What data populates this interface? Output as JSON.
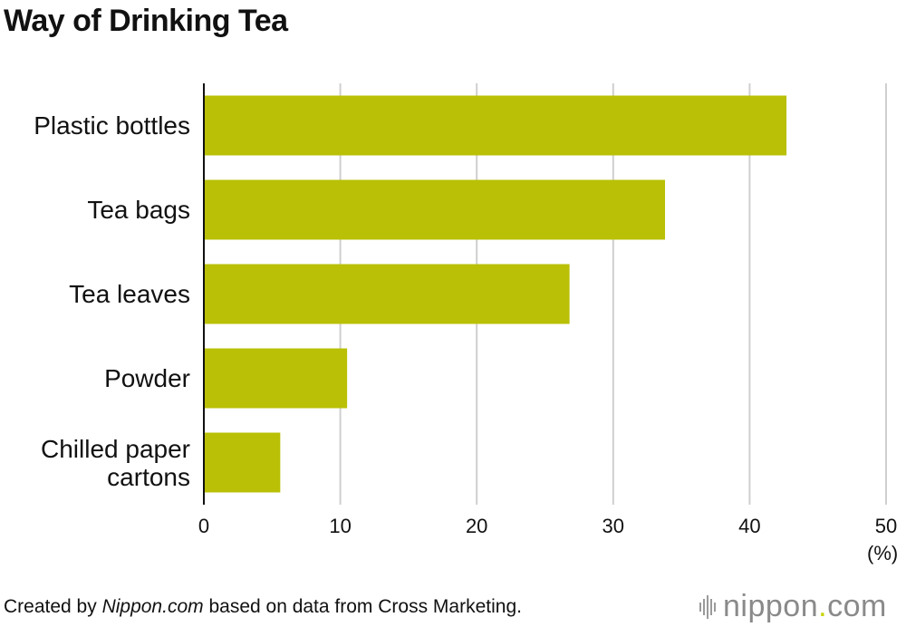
{
  "title": "Way of Drinking Tea",
  "chart_data": {
    "type": "bar",
    "orientation": "horizontal",
    "title": "Way of Drinking Tea",
    "categories": [
      "Plastic bottles",
      "Tea bags",
      "Tea leaves",
      "Powder",
      "Chilled paper cartons"
    ],
    "values": [
      42.7,
      33.8,
      26.8,
      10.5,
      5.6
    ],
    "xlim": [
      0,
      50
    ],
    "xticks": [
      0,
      10,
      20,
      30,
      40,
      50
    ],
    "unit": "(%)",
    "grid": "vertical",
    "bar_color": "#b9c005"
  },
  "footer": {
    "prefix": "Created by ",
    "source_name": "Nippon.com",
    "suffix": " based on data from Cross Marketing."
  },
  "logo": {
    "main": "nippon",
    "dot": ".",
    "tld": "com"
  }
}
